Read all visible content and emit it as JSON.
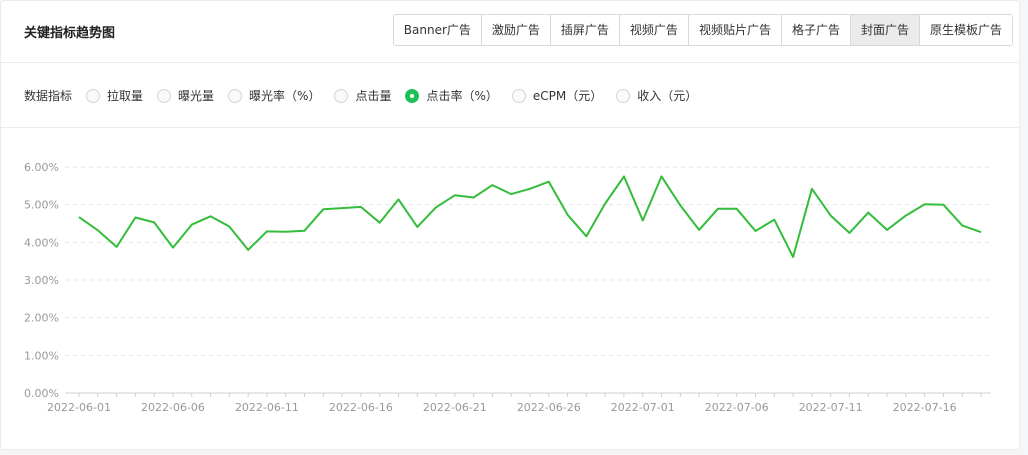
{
  "title": "关键指标趋势图",
  "tabs": [
    {
      "label": "Banner广告",
      "active": false
    },
    {
      "label": "激励广告",
      "active": false
    },
    {
      "label": "插屏广告",
      "active": false
    },
    {
      "label": "视频广告",
      "active": false
    },
    {
      "label": "视频贴片广告",
      "active": false
    },
    {
      "label": "格子广告",
      "active": false
    },
    {
      "label": "封面广告",
      "active": true
    },
    {
      "label": "原生模板广告",
      "active": false
    }
  ],
  "metrics": {
    "label": "数据指标",
    "options": [
      {
        "label": "拉取量",
        "checked": false
      },
      {
        "label": "曝光量",
        "checked": false
      },
      {
        "label": "曝光率（%）",
        "checked": false
      },
      {
        "label": "点击量",
        "checked": false
      },
      {
        "label": "点击率（%）",
        "checked": true
      },
      {
        "label": "eCPM（元）",
        "checked": false
      },
      {
        "label": "收入（元）",
        "checked": false
      }
    ]
  },
  "colors": {
    "line": "#34bc3a",
    "accent": "#1ec15a",
    "grid": "#e3e3e3"
  },
  "chart_data": {
    "type": "line",
    "ylim": [
      0,
      6
    ],
    "y_ticks": [
      0,
      1,
      2,
      3,
      4,
      5,
      6
    ],
    "y_tick_labels": [
      "0.00%",
      "1.00%",
      "2.00%",
      "3.00%",
      "4.00%",
      "5.00%",
      "6.00%"
    ],
    "x_tick_labels": [
      "2022-06-01",
      "2022-06-06",
      "2022-06-11",
      "2022-06-16",
      "2022-06-21",
      "2022-06-26",
      "2022-07-01",
      "2022-07-06",
      "2022-07-11",
      "2022-07-16"
    ],
    "x_tick_step": 5,
    "grid": true,
    "legend": "none",
    "series": [
      {
        "values": [
          4.67,
          4.32,
          3.88,
          4.66,
          4.53,
          3.86,
          4.47,
          4.69,
          4.42,
          3.8,
          4.29,
          4.28,
          4.31,
          4.88,
          4.91,
          4.94,
          4.52,
          5.14,
          4.41,
          4.93,
          5.25,
          5.19,
          5.52,
          5.28,
          5.42,
          5.61,
          4.73,
          4.16,
          5.03,
          5.75,
          4.58,
          5.75,
          4.98,
          4.33,
          4.89,
          4.89,
          4.3,
          4.6,
          3.61,
          5.42,
          4.71,
          4.25,
          4.79,
          4.33,
          4.71,
          5.01,
          5.0,
          4.45,
          4.27
        ]
      }
    ]
  }
}
